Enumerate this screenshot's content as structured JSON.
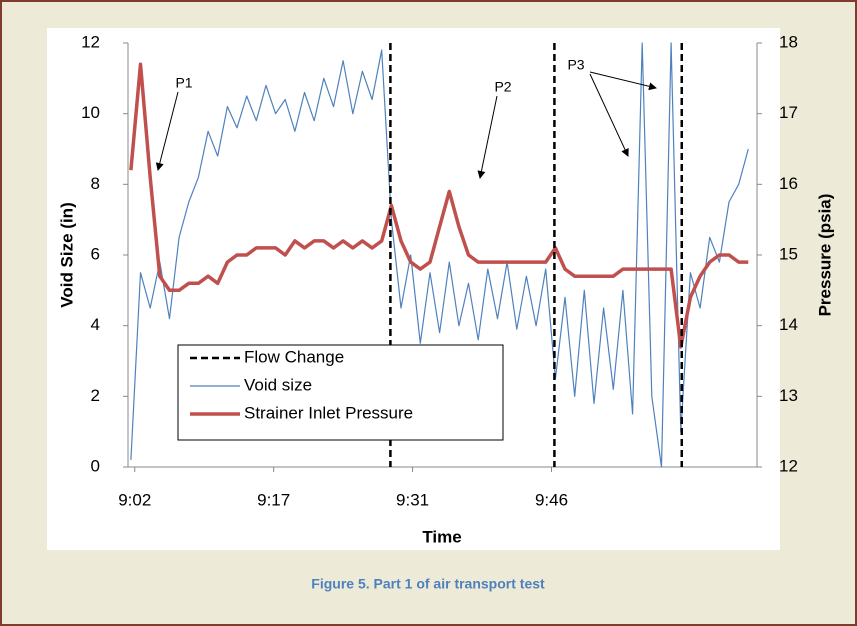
{
  "chart_data": {
    "type": "line",
    "xlabel": "Time",
    "ylabel": "Void Size (in)",
    "y2label": "Pressure (psia)",
    "x": [
      542,
      543,
      544,
      545,
      546,
      547,
      548,
      549,
      550,
      551,
      552,
      553,
      554,
      555,
      556,
      557,
      558,
      559,
      560,
      561,
      562,
      563,
      564,
      565,
      566,
      567,
      568,
      569,
      570,
      571,
      572,
      573,
      574,
      575,
      576,
      577,
      578,
      579,
      580,
      581,
      582,
      583,
      584,
      585,
      586,
      587,
      588,
      589,
      590,
      591,
      592,
      593,
      594,
      595,
      596,
      597,
      598,
      599,
      600,
      601,
      602,
      603,
      604,
      605,
      606
    ],
    "xlim": [
      541.7,
      606.9
    ],
    "xticks": [
      {
        "value": 542.4,
        "label": "9:02"
      },
      {
        "value": 556.8,
        "label": "9:17"
      },
      {
        "value": 571.2,
        "label": "9:31"
      },
      {
        "value": 585.6,
        "label": "9:46"
      }
    ],
    "ylim": [
      0,
      12
    ],
    "yticks": [
      0,
      2,
      4,
      6,
      8,
      10,
      12
    ],
    "y2lim": [
      12,
      18
    ],
    "y2ticks": [
      12,
      13,
      14,
      15,
      16,
      17,
      18
    ],
    "vlines": {
      "name": "Flow Change",
      "color": "#000000",
      "values": [
        568.9,
        585.9,
        599.1
      ]
    },
    "series": [
      {
        "name": "Void size",
        "color": "#4f81bd",
        "width": 1.2,
        "values": [
          0.2,
          5.5,
          4.5,
          5.8,
          4.2,
          6.5,
          7.5,
          8.2,
          9.5,
          8.8,
          10.2,
          9.6,
          10.5,
          9.8,
          10.8,
          10.0,
          10.4,
          9.5,
          10.6,
          9.8,
          11.0,
          10.2,
          11.5,
          10.0,
          11.2,
          10.4,
          11.8,
          7.0,
          4.5,
          6.0,
          3.5,
          5.5,
          3.8,
          5.8,
          4.0,
          5.2,
          3.6,
          5.6,
          4.2,
          5.8,
          3.9,
          5.4,
          4.0,
          5.6,
          2.5,
          4.8,
          2.0,
          5.0,
          1.8,
          4.5,
          2.2,
          5.0,
          1.5,
          12.0,
          2.0,
          0.0,
          12.0,
          1.0,
          5.5,
          4.5,
          6.5,
          5.8,
          7.5,
          8.0,
          9.0
        ]
      },
      {
        "name": "Strainer Inlet Pressure",
        "color": "#c0504d",
        "width": 3.5,
        "axis": "y2",
        "values": [
          16.2,
          17.7,
          16.1,
          14.7,
          14.5,
          14.5,
          14.6,
          14.6,
          14.7,
          14.6,
          14.9,
          15.0,
          15.0,
          15.1,
          15.1,
          15.1,
          15.0,
          15.2,
          15.1,
          15.2,
          15.2,
          15.1,
          15.2,
          15.1,
          15.2,
          15.1,
          15.2,
          15.7,
          15.2,
          14.9,
          14.8,
          14.9,
          15.4,
          15.9,
          15.4,
          15.0,
          14.9,
          14.9,
          14.9,
          14.9,
          14.9,
          14.9,
          14.9,
          14.9,
          15.1,
          14.8,
          14.7,
          14.7,
          14.7,
          14.7,
          14.7,
          14.8,
          14.8,
          14.8,
          14.8,
          14.8,
          14.8,
          13.7,
          14.4,
          14.7,
          14.9,
          15.0,
          15.0,
          14.9,
          14.9
        ]
      }
    ],
    "annotations": [
      "P1",
      "P2",
      "P3"
    ]
  },
  "caption": "Figure 5. Part 1 of air transport test"
}
